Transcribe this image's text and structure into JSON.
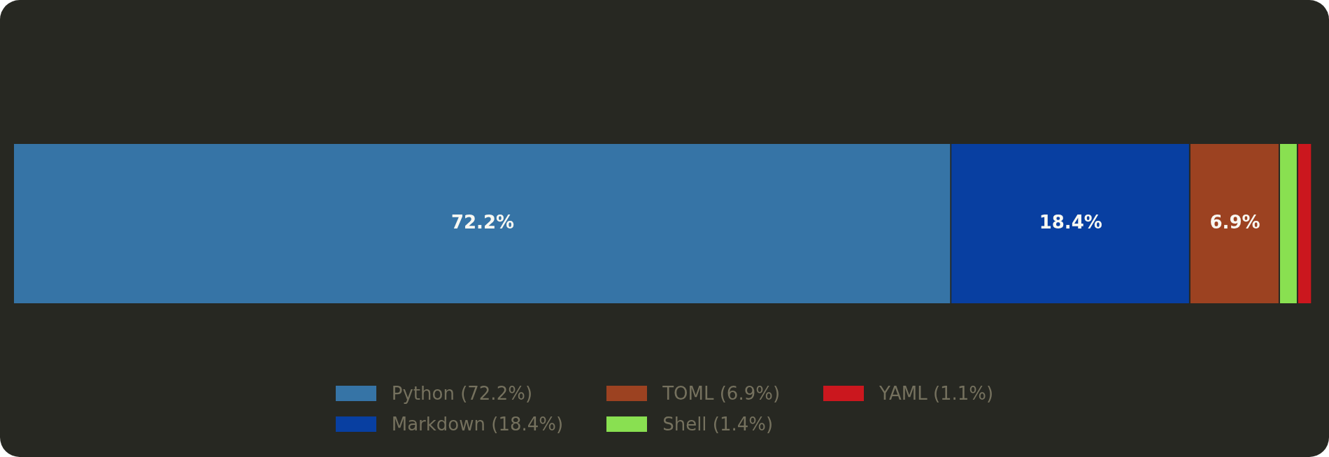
{
  "chart_data": {
    "type": "bar",
    "orientation": "horizontal",
    "stacked": true,
    "legend": "bottom",
    "categories": [
      null
    ],
    "series": [
      {
        "name": "Python (72.2%)",
        "color": "#3674a6",
        "values": [
          72.2
        ],
        "value_labels": [
          "72.2%"
        ]
      },
      {
        "name": "Markdown (18.4%)",
        "color": "#083fa1",
        "values": [
          18.4
        ],
        "value_labels": [
          "18.4%"
        ]
      },
      {
        "name": "TOML (6.9%)",
        "color": "#9c4221",
        "values": [
          6.9
        ],
        "value_labels": [
          "6.9%"
        ]
      },
      {
        "name": "Shell (1.4%)",
        "color": "#89e051",
        "values": [
          1.4
        ],
        "value_labels": [
          null
        ]
      },
      {
        "name": "YAML (1.1%)",
        "color": "#cb171e",
        "values": [
          1.1
        ],
        "value_labels": [
          null
        ]
      }
    ]
  }
}
